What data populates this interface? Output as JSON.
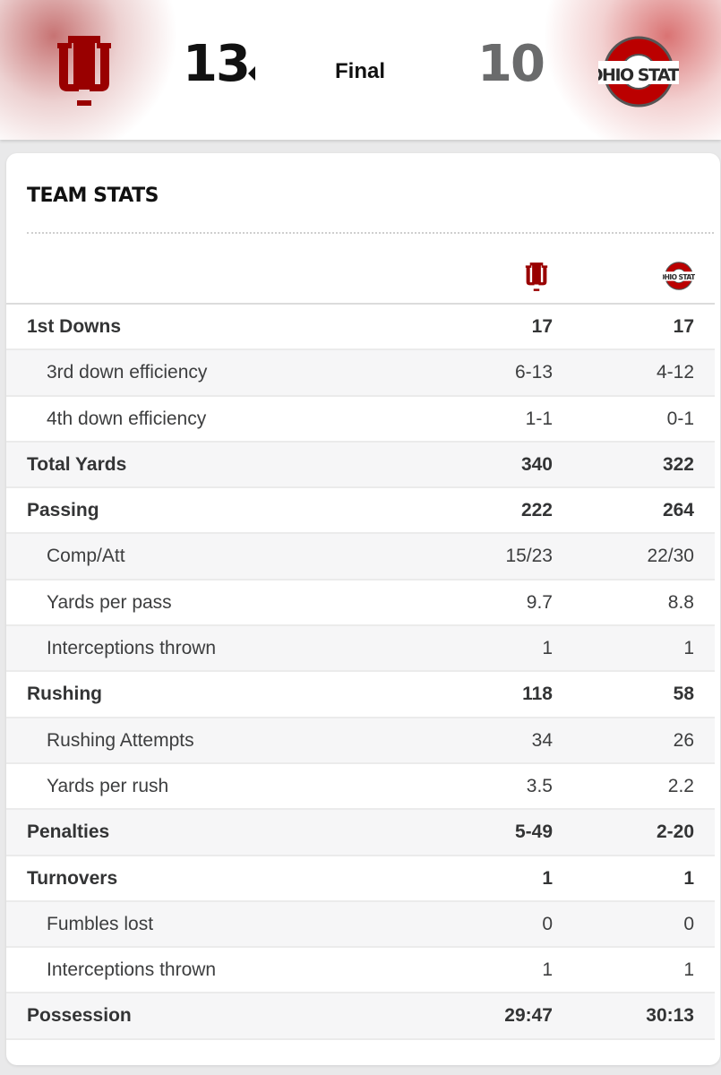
{
  "scoreboard": {
    "home_team": {
      "logo": "indiana-iu-logo",
      "score": "13"
    },
    "status": "Final",
    "away_team": {
      "logo": "ohio-state-logo",
      "score": "10"
    },
    "colors": {
      "indiana_crimson": "#990000",
      "ohio_scarlet": "#bb0000",
      "ohio_gray": "#666666"
    }
  },
  "team_stats": {
    "title": "TEAM STATS",
    "rows": [
      {
        "label": "1st Downs",
        "home": "17",
        "away": "17",
        "kind": "main"
      },
      {
        "label": "3rd down efficiency",
        "home": "6-13",
        "away": "4-12",
        "kind": "sub"
      },
      {
        "label": "4th down efficiency",
        "home": "1-1",
        "away": "0-1",
        "kind": "sub"
      },
      {
        "label": "Total Yards",
        "home": "340",
        "away": "322",
        "kind": "main"
      },
      {
        "label": "Passing",
        "home": "222",
        "away": "264",
        "kind": "main"
      },
      {
        "label": "Comp/Att",
        "home": "15/23",
        "away": "22/30",
        "kind": "sub"
      },
      {
        "label": "Yards per pass",
        "home": "9.7",
        "away": "8.8",
        "kind": "sub"
      },
      {
        "label": "Interceptions thrown",
        "home": "1",
        "away": "1",
        "kind": "sub"
      },
      {
        "label": "Rushing",
        "home": "118",
        "away": "58",
        "kind": "main"
      },
      {
        "label": "Rushing Attempts",
        "home": "34",
        "away": "26",
        "kind": "sub"
      },
      {
        "label": "Yards per rush",
        "home": "3.5",
        "away": "2.2",
        "kind": "sub"
      },
      {
        "label": "Penalties",
        "home": "5-49",
        "away": "2-20",
        "kind": "main"
      },
      {
        "label": "Turnovers",
        "home": "1",
        "away": "1",
        "kind": "main"
      },
      {
        "label": "Fumbles lost",
        "home": "0",
        "away": "0",
        "kind": "sub"
      },
      {
        "label": "Interceptions thrown",
        "home": "1",
        "away": "1",
        "kind": "sub"
      },
      {
        "label": "Possession",
        "home": "29:47",
        "away": "30:13",
        "kind": "main"
      }
    ]
  }
}
